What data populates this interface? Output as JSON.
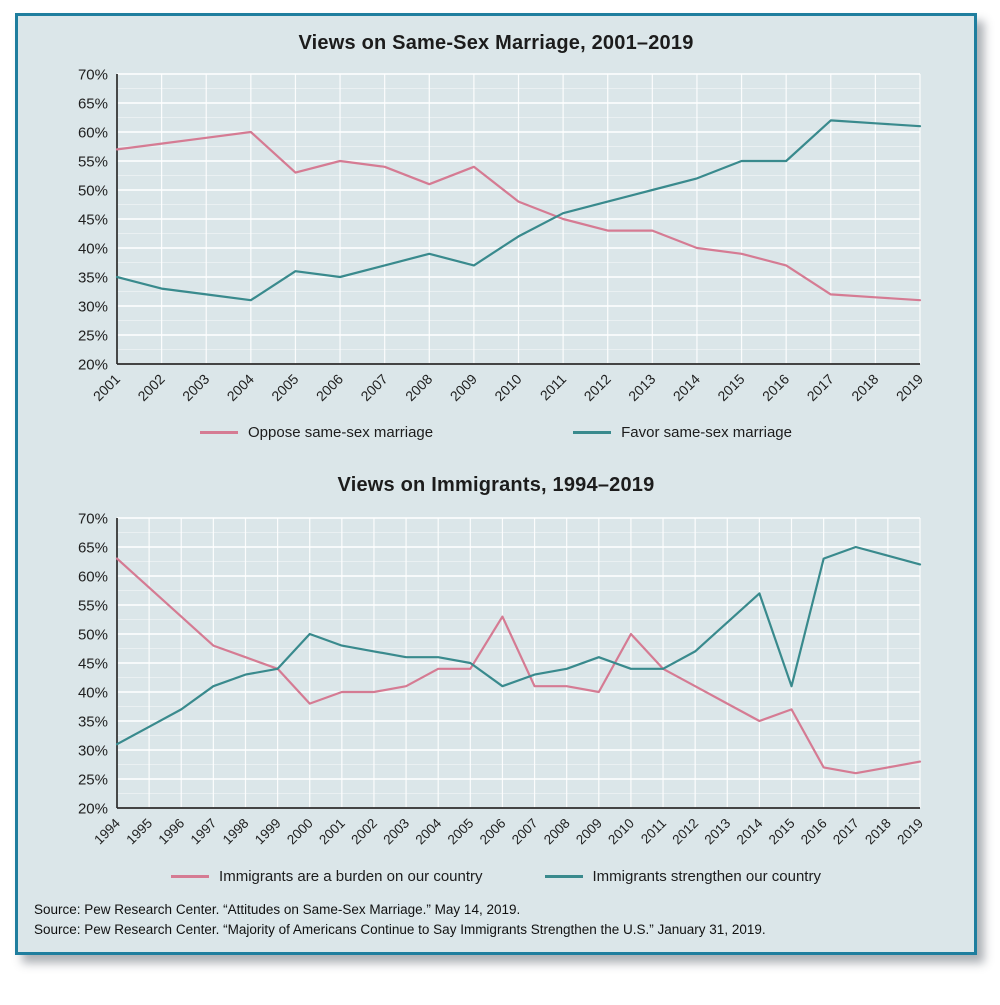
{
  "page": {
    "background": "#dbe6e9",
    "border_color": "#1f7e9e",
    "grid_color": "#ffffff",
    "axis_color": "#2b2b2b"
  },
  "sources": [
    "Source: Pew Research Center. “Attitudes on Same-Sex Marriage.” May 14, 2019.",
    "Source: Pew Research Center. “Majority of Americans Continue to Say Immigrants Strengthen the U.S.” January 31, 2019."
  ],
  "chart_data": [
    {
      "type": "line",
      "title": "Views on Same-Sex Marriage, 2001–2019",
      "x": [
        2001,
        2002,
        2003,
        2004,
        2005,
        2006,
        2007,
        2008,
        2009,
        2010,
        2011,
        2012,
        2013,
        2014,
        2015,
        2016,
        2017,
        2018,
        2019
      ],
      "series": [
        {
          "name": "Oppose same-sex marriage",
          "color": "#d57b93",
          "values": [
            57,
            58,
            59,
            60,
            53,
            55,
            54,
            51,
            54,
            48,
            45,
            43,
            43,
            40,
            39,
            37,
            32,
            31.5,
            31
          ]
        },
        {
          "name": "Favor same-sex marriage",
          "color": "#398a8d",
          "values": [
            35,
            33,
            32,
            31,
            36,
            35,
            37,
            39,
            37,
            42,
            46,
            48,
            50,
            52,
            55,
            55,
            62,
            61.5,
            61
          ]
        }
      ],
      "xlabel": "",
      "ylabel": "",
      "ylim": [
        20,
        70
      ],
      "ytick_step": 5,
      "ytick_suffix": "%",
      "grid": true,
      "legend_position": "bottom"
    },
    {
      "type": "line",
      "title": "Views on Immigrants, 1994–2019",
      "x": [
        1994,
        1995,
        1996,
        1997,
        1998,
        1999,
        2000,
        2001,
        2002,
        2003,
        2004,
        2005,
        2006,
        2007,
        2008,
        2009,
        2010,
        2011,
        2012,
        2013,
        2014,
        2015,
        2016,
        2017,
        2018,
        2019
      ],
      "series": [
        {
          "name": "Immigrants are a burden on our country",
          "color": "#d57b93",
          "values": [
            63,
            58,
            53,
            48,
            46,
            44,
            38,
            40,
            40,
            41,
            44,
            44,
            53,
            41,
            41,
            40,
            50,
            44,
            41,
            38,
            35,
            37,
            27,
            26,
            27,
            28
          ]
        },
        {
          "name": "Immigrants strengthen our country",
          "color": "#398a8d",
          "values": [
            31,
            34,
            37,
            41,
            43,
            44,
            50,
            48,
            47,
            46,
            46,
            45,
            41,
            43,
            44,
            46,
            44,
            44,
            47,
            52,
            57,
            41,
            63,
            65,
            63.5,
            62
          ]
        }
      ],
      "xlabel": "",
      "ylabel": "",
      "ylim": [
        20,
        70
      ],
      "ytick_step": 5,
      "ytick_suffix": "%",
      "grid": true,
      "legend_position": "bottom"
    }
  ]
}
